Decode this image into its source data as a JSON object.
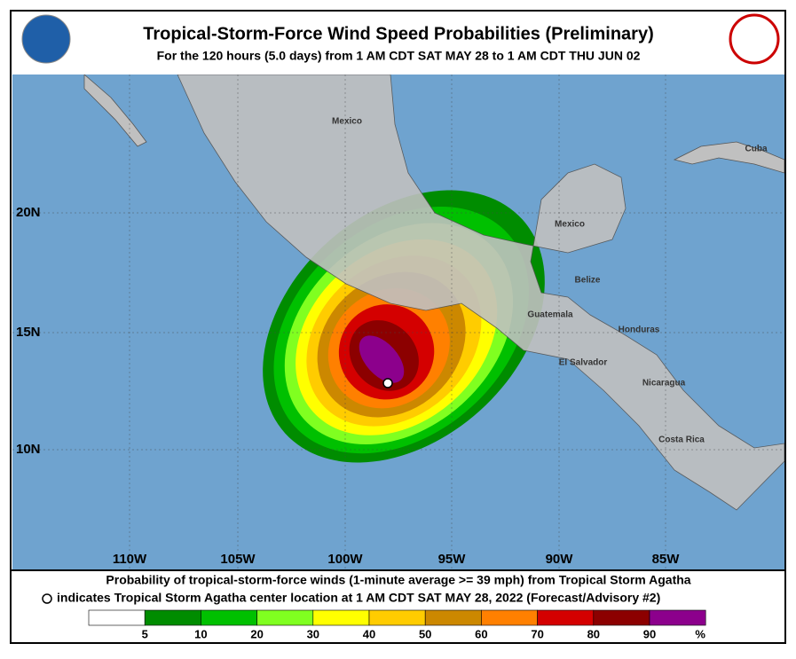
{
  "header": {
    "title": "Tropical-Storm-Force Wind Speed Probabilities (Preliminary)",
    "subtitle": "For the 120 hours (5.0 days) from 1 AM CDT SAT MAY 28 to 1 AM CDT THU JUN 02"
  },
  "map": {
    "place_labels": [
      "Mexico",
      "Cuba",
      "Mexico",
      "Belize",
      "Guatemala",
      "Honduras",
      "El Salvador",
      "Nicaragua",
      "Costa Rica"
    ],
    "lat_labels": [
      "20N",
      "15N",
      "10N"
    ],
    "lon_labels": [
      "110W",
      "105W",
      "100W",
      "95W",
      "90W",
      "85W"
    ]
  },
  "footer": {
    "line1": "Probability of tropical-storm-force winds (1-minute average >= 39 mph) from Tropical Storm Agatha",
    "line2": "indicates Tropical Storm Agatha center location at 1 AM CDT SAT MAY 28, 2022 (Forecast/Advisory #2)"
  },
  "legend": {
    "labels": [
      "5",
      "10",
      "20",
      "30",
      "40",
      "50",
      "60",
      "70",
      "80",
      "90",
      "%"
    ],
    "colors": [
      "#ffffff",
      "#008c00",
      "#00c000",
      "#80ff20",
      "#ffff00",
      "#ffcc00",
      "#cc8800",
      "#ff8000",
      "#d40000",
      "#8c0000",
      "#8c008c"
    ]
  }
}
